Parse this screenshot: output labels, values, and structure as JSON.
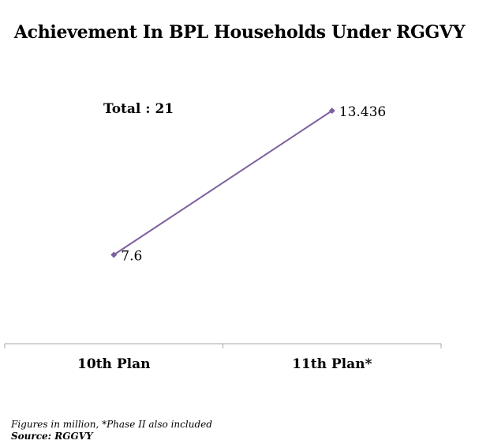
{
  "chart_data": {
    "type": "line",
    "title": "Achievement In BPL Households Under RGGVY",
    "annotation": "Total : 21",
    "categories": [
      "10th Plan",
      "11th Plan*"
    ],
    "series": [
      {
        "values": [
          7.6,
          13.436
        ],
        "data_labels": [
          "7.6",
          "13.436"
        ],
        "color": "#7d60a0"
      }
    ],
    "xlabel": "",
    "ylabel": "",
    "ylim": [
      4,
      16
    ],
    "grid": false,
    "legend": "none"
  },
  "notes": {
    "footnote": "Figures in million, *Phase II also included",
    "source": "Source: RGGVY"
  },
  "colors": {
    "series_line": "#7d60a0",
    "axis": "#a6a6a6",
    "text": "#000000"
  }
}
